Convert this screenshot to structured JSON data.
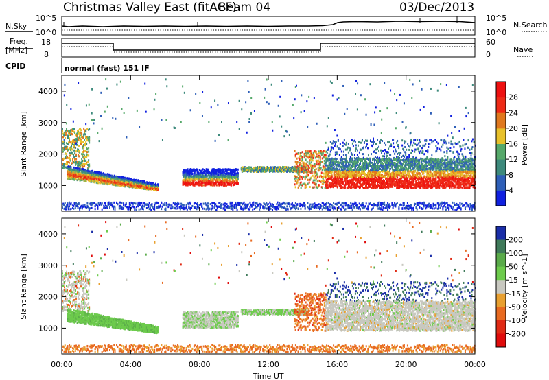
{
  "header": {
    "title": "Christmas Valley East (fitACF)",
    "beam": "Beam 04",
    "date": "03/Dec/2013"
  },
  "top_panels": {
    "noise": {
      "left_label": "N.Sky",
      "right_label": "N.Search",
      "left_ticks": [
        "10^5",
        "10^0"
      ],
      "right_ticks": [
        "10^5",
        "10^0"
      ]
    },
    "freq": {
      "left_label_line1": "Freq.",
      "left_label_line2": "[MHz]",
      "right_label": "Nave",
      "left_ticks": [
        "18",
        "8"
      ],
      "right_ticks": [
        "60",
        "0"
      ]
    },
    "cpid": {
      "label": "CPID",
      "value": "normal (fast) 151 IF"
    }
  },
  "chart_data": [
    {
      "type": "heatmap",
      "name": "power",
      "ylabel": "Slant Range [km]",
      "xlabel": "",
      "xlim": [
        0,
        24
      ],
      "ylim": [
        180,
        4500
      ],
      "y_ticks": [
        "1000",
        "2000",
        "3000",
        "4000"
      ],
      "colorbar": {
        "label": "Power [dB]",
        "ticks": [
          "4",
          "8",
          "12",
          "16",
          "20",
          "24",
          "28"
        ],
        "colors": [
          "#1020e0",
          "#2e5fb8",
          "#3d8a7c",
          "#56a96a",
          "#e8c12a",
          "#e0781e",
          "#ee2a16",
          "#ee1010"
        ]
      }
    },
    {
      "type": "heatmap",
      "name": "velocity",
      "ylabel": "Slant Range [km]",
      "xlabel": "Time UT",
      "xlim": [
        0,
        24
      ],
      "ylim": [
        180,
        4500
      ],
      "x_ticks": [
        "00:00",
        "04:00",
        "08:00",
        "12:00",
        "16:00",
        "20:00",
        "00:00"
      ],
      "y_ticks": [
        "1000",
        "2000",
        "3000",
        "4000"
      ],
      "colorbar": {
        "label": "Velocity [m s^-1]",
        "ticks": [
          "200",
          "100",
          "50",
          "15",
          "-15",
          "-50",
          "-100",
          "-200"
        ],
        "colors": [
          "#1a2ea8",
          "#3f7a5a",
          "#5aab4a",
          "#6dcb4c",
          "#c8c8c0",
          "#e8a030",
          "#e86a20",
          "#e02a14",
          "#e00c0c"
        ]
      }
    }
  ]
}
